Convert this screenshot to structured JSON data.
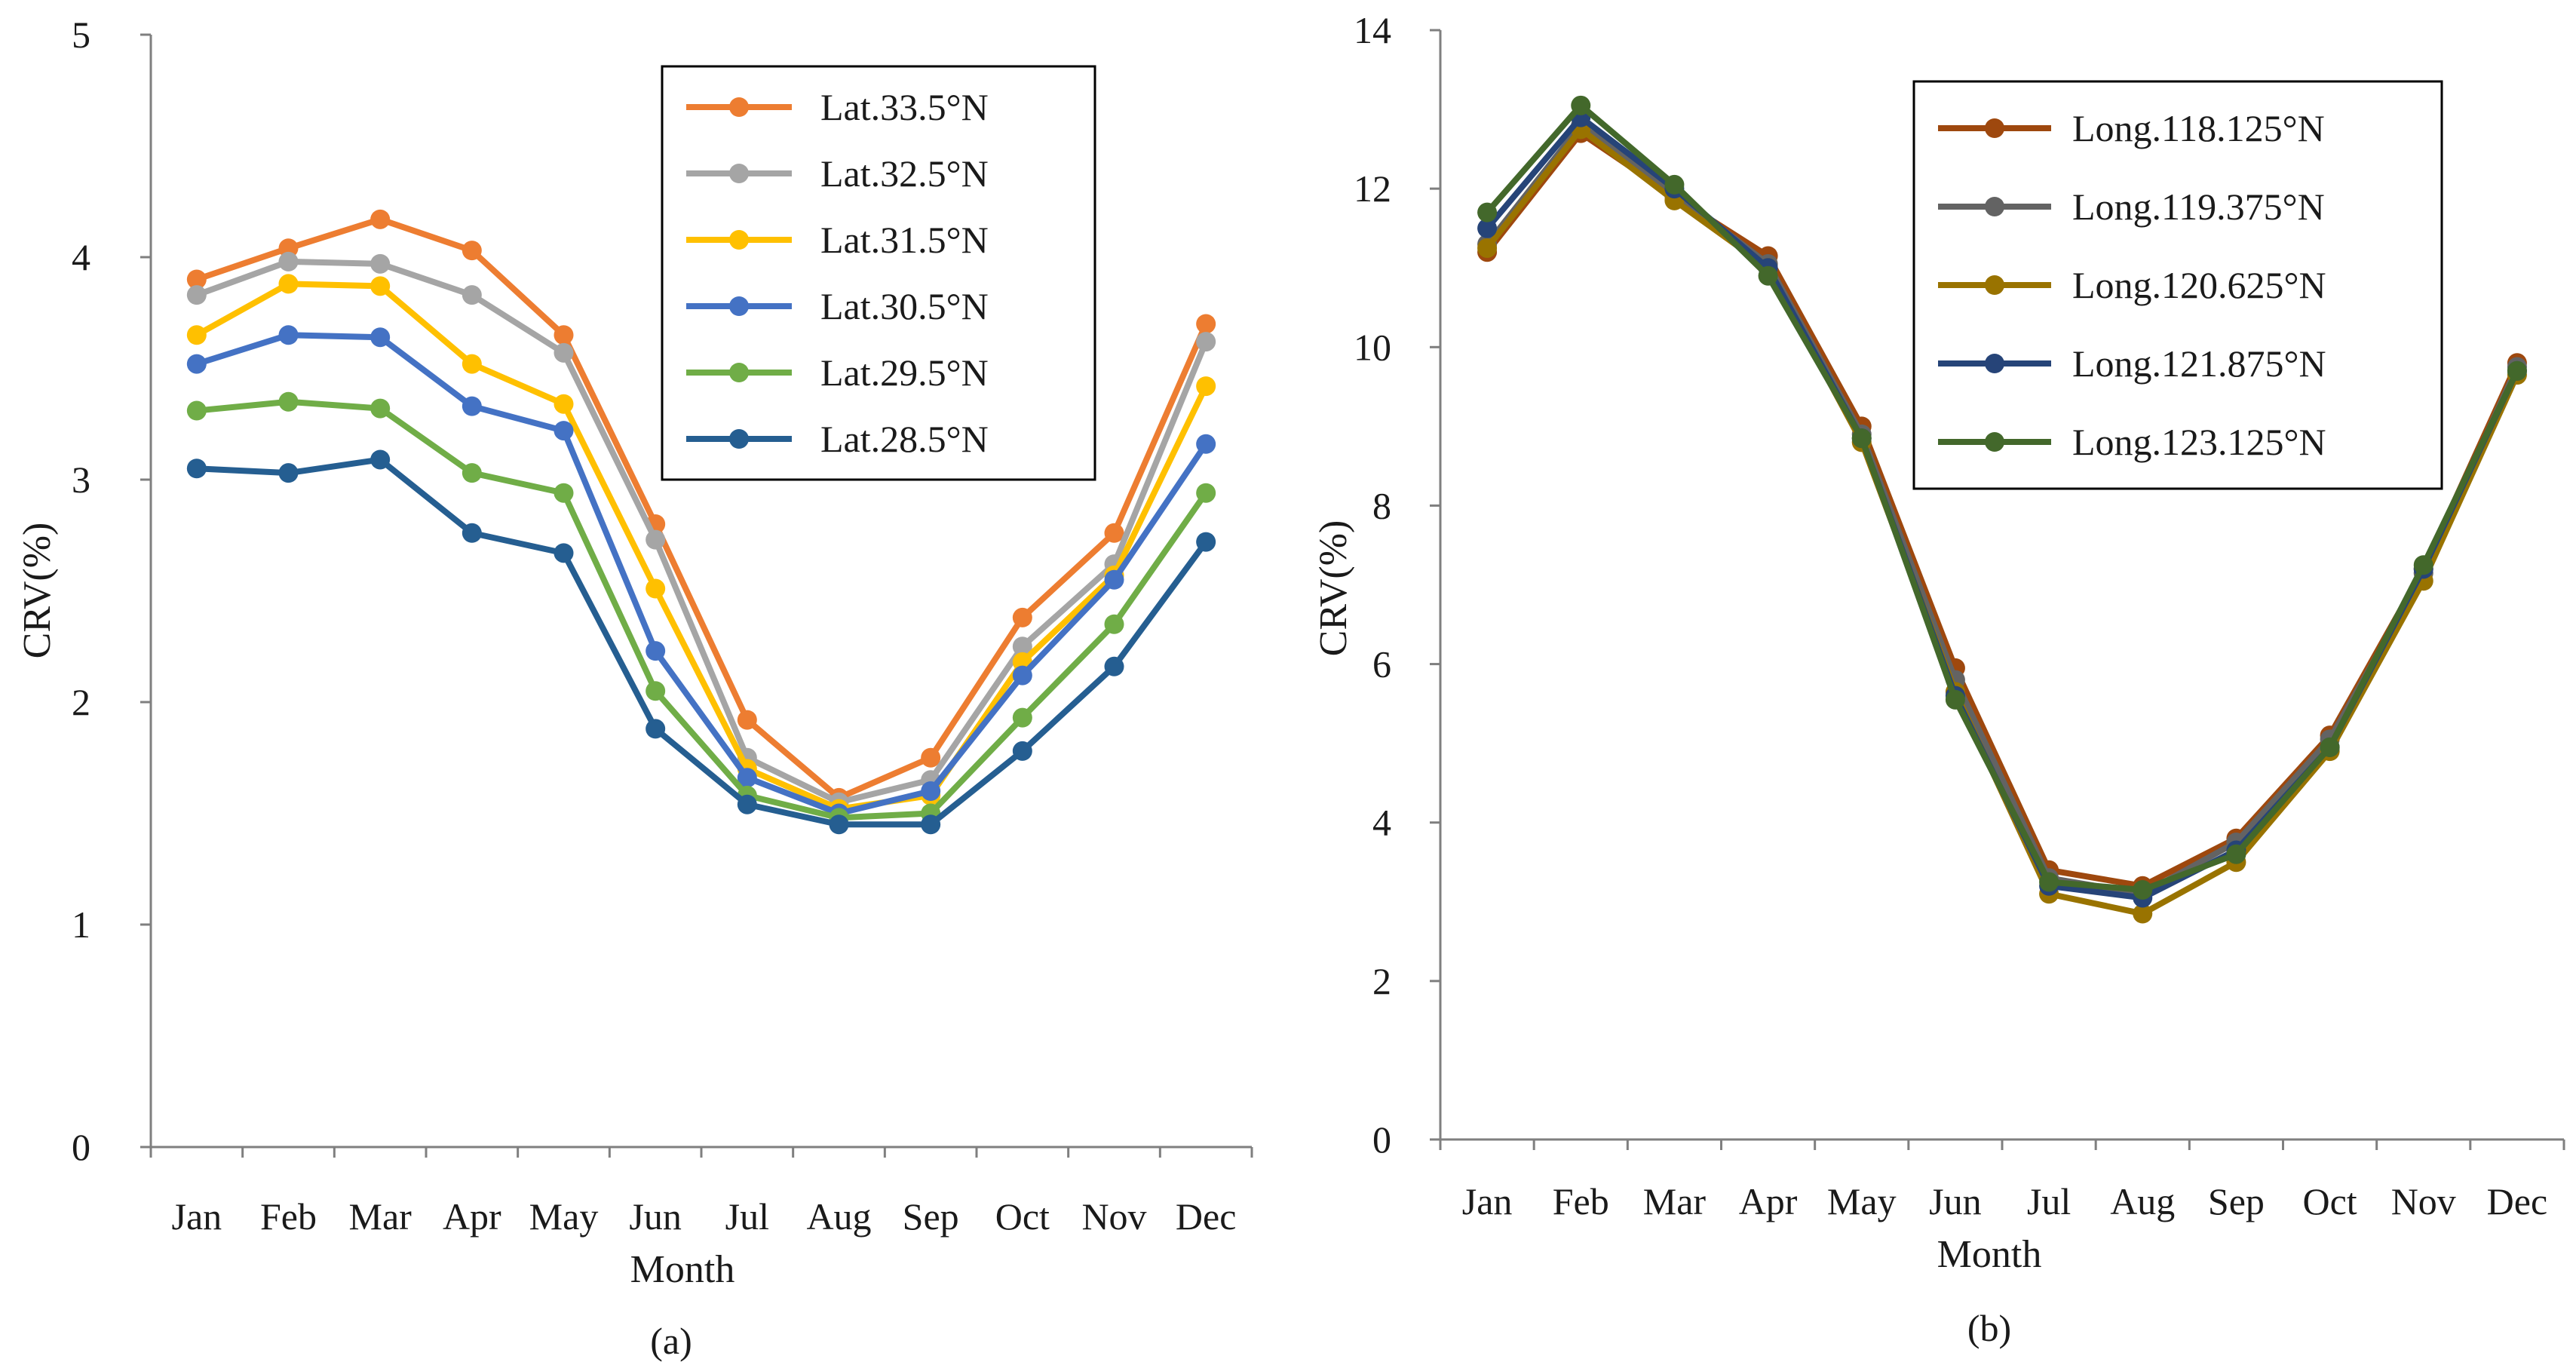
{
  "chart_data": [
    {
      "type": "line",
      "panel_label": "(a)",
      "xlabel": "Month",
      "ylabel": "CRV(%)",
      "categories": [
        "Jan",
        "Feb",
        "Mar",
        "Apr",
        "May",
        "Jun",
        "Jul",
        "Aug",
        "Sep",
        "Oct",
        "Nov",
        "Dec"
      ],
      "ylim": [
        0,
        5
      ],
      "yticks": [
        "0",
        "1",
        "2",
        "3",
        "4",
        "5"
      ],
      "legend_position": "top-right",
      "series": [
        {
          "name": "Lat.33.5°N",
          "color": "#ED7D31",
          "values": [
            3.9,
            4.04,
            4.17,
            4.03,
            3.65,
            2.8,
            1.92,
            1.57,
            1.75,
            2.38,
            2.76,
            3.7
          ]
        },
        {
          "name": "Lat.32.5°N",
          "color": "#A5A5A5",
          "values": [
            3.83,
            3.98,
            3.97,
            3.83,
            3.57,
            2.73,
            1.75,
            1.55,
            1.65,
            2.25,
            2.62,
            3.62
          ]
        },
        {
          "name": "Lat.31.5°N",
          "color": "#FFC000",
          "values": [
            3.65,
            3.88,
            3.87,
            3.52,
            3.34,
            2.51,
            1.7,
            1.52,
            1.58,
            2.18,
            2.57,
            3.42
          ]
        },
        {
          "name": "Lat.30.5°N",
          "color": "#4472C4",
          "values": [
            3.52,
            3.65,
            3.64,
            3.33,
            3.22,
            2.23,
            1.66,
            1.5,
            1.6,
            2.12,
            2.55,
            3.16
          ]
        },
        {
          "name": "Lat.29.5°N",
          "color": "#70AD47",
          "values": [
            3.31,
            3.35,
            3.32,
            3.03,
            2.94,
            2.05,
            1.58,
            1.48,
            1.5,
            1.93,
            2.35,
            2.94
          ]
        },
        {
          "name": "Lat.28.5°N",
          "color": "#255E91",
          "values": [
            3.05,
            3.03,
            3.09,
            2.76,
            2.67,
            1.88,
            1.54,
            1.45,
            1.45,
            1.78,
            2.16,
            2.72
          ]
        }
      ]
    },
    {
      "type": "line",
      "panel_label": "(b)",
      "xlabel": "Month",
      "ylabel": "CRV(%)",
      "categories": [
        "Jan",
        "Feb",
        "Mar",
        "Apr",
        "May",
        "Jun",
        "Jul",
        "Aug",
        "Sep",
        "Oct",
        "Nov",
        "Dec"
      ],
      "ylim": [
        0,
        14
      ],
      "yticks": [
        "0",
        "2",
        "4",
        "6",
        "8",
        "10",
        "12",
        "14"
      ],
      "legend_position": "top-right",
      "series": [
        {
          "name": "Long.118.125°N",
          "color": "#9E480E",
          "values": [
            11.2,
            12.7,
            11.9,
            11.15,
            9.0,
            5.95,
            3.4,
            3.2,
            3.8,
            5.1,
            7.2,
            9.8
          ]
        },
        {
          "name": "Long.119.375°N",
          "color": "#636363",
          "values": [
            11.3,
            12.8,
            11.95,
            11.05,
            8.9,
            5.8,
            3.3,
            3.1,
            3.75,
            5.05,
            7.15,
            9.75
          ]
        },
        {
          "name": "Long.120.625°N",
          "color": "#997300",
          "values": [
            11.25,
            12.75,
            11.85,
            11.0,
            8.8,
            5.65,
            3.1,
            2.85,
            3.5,
            4.9,
            7.05,
            9.65
          ]
        },
        {
          "name": "Long.121.875°N",
          "color": "#264478",
          "values": [
            11.5,
            12.9,
            12.0,
            11.0,
            8.85,
            5.6,
            3.2,
            3.05,
            3.65,
            4.95,
            7.2,
            9.7
          ]
        },
        {
          "name": "Long.123.125°N",
          "color": "#43682B",
          "values": [
            11.7,
            13.05,
            12.05,
            10.9,
            8.85,
            5.55,
            3.25,
            3.15,
            3.6,
            4.95,
            7.25,
            9.7
          ]
        }
      ]
    }
  ]
}
